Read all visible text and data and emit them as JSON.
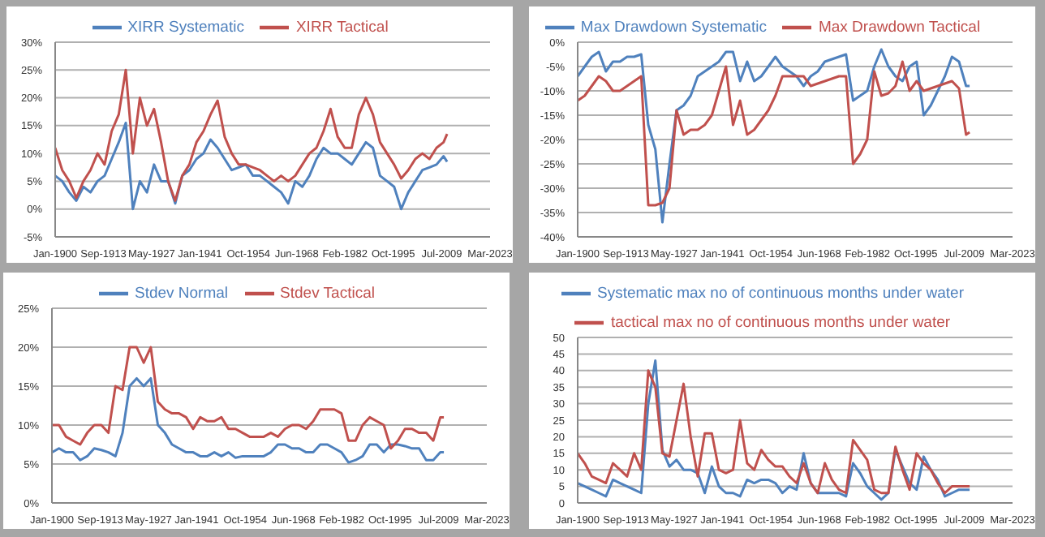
{
  "chart_data": [
    {
      "type": "line",
      "x": [
        "1900",
        "1902",
        "1904",
        "1906",
        "1908",
        "1910",
        "1912",
        "1914",
        "1916",
        "1918",
        "1920",
        "1922",
        "1924",
        "1926",
        "1928",
        "1930",
        "1932",
        "1934",
        "1936",
        "1938",
        "1940",
        "1942",
        "1944",
        "1946",
        "1948",
        "1950",
        "1952",
        "1954",
        "1956",
        "1958",
        "1960",
        "1962",
        "1964",
        "1966",
        "1968",
        "1970",
        "1972",
        "1974",
        "1976",
        "1978",
        "1980",
        "1982",
        "1984",
        "1986",
        "1988",
        "1990",
        "1992",
        "1994",
        "1996",
        "1998",
        "2000",
        "2002",
        "2004",
        "2006",
        "2008",
        "2010",
        "2011"
      ],
      "series": [
        {
          "name": "XIRR Systematic",
          "color": "#4f81bd",
          "values": [
            6,
            5,
            3,
            1.5,
            4,
            3,
            5,
            6,
            9,
            12,
            15.5,
            0,
            5,
            3,
            8,
            5,
            5,
            1,
            6,
            7,
            9,
            10,
            12.5,
            11,
            9,
            7,
            7.5,
            8,
            6,
            6,
            5,
            4,
            3,
            1,
            5,
            4,
            6,
            9,
            11,
            10,
            10,
            9,
            8,
            10,
            12,
            11,
            6,
            5,
            4,
            0,
            3,
            5,
            7,
            7.5,
            8,
            9.5,
            8.5
          ]
        },
        {
          "name": "XIRR Tactical",
          "color": "#c0504d",
          "values": [
            11,
            7,
            5,
            2,
            5,
            7,
            10,
            8,
            14,
            17,
            25,
            10,
            20,
            15,
            18,
            12,
            5,
            1.5,
            6,
            8,
            12,
            14,
            17,
            19.5,
            13,
            10,
            8,
            8,
            7.5,
            7,
            6,
            5,
            6,
            5,
            6,
            8,
            10,
            11,
            14,
            18,
            13,
            11,
            11,
            17,
            20,
            17,
            12,
            10,
            8,
            5.5,
            7,
            9,
            10,
            9,
            11,
            12,
            13.5
          ]
        }
      ],
      "xlim": [
        "1900-01",
        "2023-03"
      ],
      "xticks": [
        {
          "value": "1900-01",
          "label": "Jan-1900"
        },
        {
          "value": "1913-09",
          "label": "Sep-1913"
        },
        {
          "value": "1927-05",
          "label": "May-1927"
        },
        {
          "value": "1941-01",
          "label": "Jan-1941"
        },
        {
          "value": "1954-10",
          "label": "Oct-1954"
        },
        {
          "value": "1968-06",
          "label": "Jun-1968"
        },
        {
          "value": "1982-02",
          "label": "Feb-1982"
        },
        {
          "value": "1995-10",
          "label": "Oct-1995"
        },
        {
          "value": "2009-07",
          "label": "Jul-2009"
        },
        {
          "value": "2023-03",
          "label": "Mar-2023"
        }
      ],
      "ylim": [
        -5,
        30
      ],
      "yticks": [
        {
          "value": -5,
          "label": "-5%"
        },
        {
          "value": 0,
          "label": "0%"
        },
        {
          "value": 5,
          "label": "5%"
        },
        {
          "value": 10,
          "label": "10%"
        },
        {
          "value": 15,
          "label": "15%"
        },
        {
          "value": 20,
          "label": "20%"
        },
        {
          "value": 25,
          "label": "25%"
        },
        {
          "value": 30,
          "label": "30%"
        }
      ],
      "grid": "y",
      "legend": "top",
      "marker": "none",
      "line_style": "solid"
    },
    {
      "type": "line",
      "x": [
        "1900",
        "1902",
        "1904",
        "1906",
        "1908",
        "1910",
        "1912",
        "1914",
        "1916",
        "1918",
        "1920",
        "1922",
        "1924",
        "1926",
        "1928",
        "1930",
        "1932",
        "1934",
        "1936",
        "1938",
        "1940",
        "1942",
        "1944",
        "1946",
        "1948",
        "1950",
        "1952",
        "1954",
        "1956",
        "1958",
        "1960",
        "1962",
        "1964",
        "1966",
        "1968",
        "1970",
        "1972",
        "1974",
        "1976",
        "1978",
        "1980",
        "1982",
        "1984",
        "1986",
        "1988",
        "1990",
        "1992",
        "1994",
        "1996",
        "1998",
        "2000",
        "2002",
        "2004",
        "2006",
        "2008",
        "2010",
        "2011"
      ],
      "series": [
        {
          "name": "Max Drawdown Systematic",
          "color": "#4f81bd",
          "values": [
            -7,
            -5,
            -3,
            -2,
            -6,
            -4,
            -4,
            -3,
            -3,
            -2.5,
            -17,
            -22,
            -37,
            -25,
            -14,
            -13,
            -11,
            -7,
            -6,
            -5,
            -4,
            -2,
            -2,
            -8,
            -4,
            -8,
            -7,
            -5,
            -3,
            -5,
            -6,
            -7,
            -9,
            -7,
            -6,
            -4,
            -3.5,
            -3,
            -2.5,
            -12,
            -11,
            -10,
            -5,
            -1.5,
            -5,
            -7,
            -8,
            -5,
            -4,
            -15,
            -13,
            -10,
            -7,
            -3,
            -4,
            -9,
            -9
          ]
        },
        {
          "name": "Max Drawdown Tactical",
          "color": "#c0504d",
          "values": [
            -12,
            -11,
            -9,
            -7,
            -8,
            -10,
            -10,
            -9,
            -8,
            -7,
            -33.5,
            -33.5,
            -33,
            -30,
            -14,
            -19,
            -18,
            -18,
            -17,
            -15,
            -10,
            -5,
            -17,
            -12,
            -19,
            -18,
            -16,
            -14,
            -11,
            -7,
            -7,
            -7,
            -7,
            -9,
            -8.5,
            -8,
            -7.5,
            -7,
            -7,
            -25,
            -23,
            -20,
            -6,
            -11,
            -10.5,
            -9,
            -4,
            -10,
            -8,
            -10,
            -9.5,
            -9,
            -8.5,
            -8,
            -9.5,
            -19,
            -18.5
          ]
        }
      ],
      "xlim": [
        "1900-01",
        "2023-03"
      ],
      "xticks": [
        {
          "value": "1900-01",
          "label": "Jan-1900"
        },
        {
          "value": "1913-09",
          "label": "Sep-1913"
        },
        {
          "value": "1927-05",
          "label": "May-1927"
        },
        {
          "value": "1941-01",
          "label": "Jan-1941"
        },
        {
          "value": "1954-10",
          "label": "Oct-1954"
        },
        {
          "value": "1968-06",
          "label": "Jun-1968"
        },
        {
          "value": "1982-02",
          "label": "Feb-1982"
        },
        {
          "value": "1995-10",
          "label": "Oct-1995"
        },
        {
          "value": "2009-07",
          "label": "Jul-2009"
        },
        {
          "value": "2023-03",
          "label": "Mar-2023"
        }
      ],
      "ylim": [
        -40,
        0
      ],
      "yticks": [
        {
          "value": -40,
          "label": "-40%"
        },
        {
          "value": -35,
          "label": "-35%"
        },
        {
          "value": -30,
          "label": "-30%"
        },
        {
          "value": -25,
          "label": "-25%"
        },
        {
          "value": -20,
          "label": "-20%"
        },
        {
          "value": -15,
          "label": "-15%"
        },
        {
          "value": -10,
          "label": "-10%"
        },
        {
          "value": -5,
          "label": "-5%"
        },
        {
          "value": 0,
          "label": "0%"
        }
      ],
      "grid": "y",
      "legend": "top",
      "marker": "none",
      "line_style": "solid"
    },
    {
      "type": "line",
      "x": [
        "1900",
        "1902",
        "1904",
        "1906",
        "1908",
        "1910",
        "1912",
        "1914",
        "1916",
        "1918",
        "1920",
        "1922",
        "1924",
        "1926",
        "1928",
        "1930",
        "1932",
        "1934",
        "1936",
        "1938",
        "1940",
        "1942",
        "1944",
        "1946",
        "1948",
        "1950",
        "1952",
        "1954",
        "1956",
        "1958",
        "1960",
        "1962",
        "1964",
        "1966",
        "1968",
        "1970",
        "1972",
        "1974",
        "1976",
        "1978",
        "1980",
        "1982",
        "1984",
        "1986",
        "1988",
        "1990",
        "1992",
        "1994",
        "1996",
        "1998",
        "2000",
        "2002",
        "2004",
        "2006",
        "2008",
        "2010",
        "2011"
      ],
      "series": [
        {
          "name": "Stdev Normal",
          "color": "#4f81bd",
          "values": [
            6.5,
            7,
            6.5,
            6.5,
            5.5,
            6,
            7,
            6.8,
            6.5,
            6,
            9,
            15,
            16,
            15,
            16,
            10,
            9,
            7.5,
            7,
            6.5,
            6.5,
            6,
            6,
            6.5,
            6,
            6.5,
            5.8,
            6,
            6,
            6,
            6,
            6.5,
            7.5,
            7.5,
            7,
            7,
            6.5,
            6.5,
            7.5,
            7.5,
            7,
            6.5,
            5.2,
            5.5,
            6,
            7.5,
            7.5,
            6.5,
            7.5,
            7.5,
            7.3,
            7,
            7,
            5.5,
            5.5,
            6.5,
            6.5
          ]
        },
        {
          "name": "Stdev Tactical",
          "color": "#c0504d",
          "values": [
            10,
            10,
            8.5,
            8,
            7.5,
            9,
            10,
            10,
            9,
            15,
            14.5,
            20,
            20,
            18,
            20,
            13,
            12,
            11.5,
            11.5,
            11,
            9.5,
            11,
            10.5,
            10.5,
            11,
            9.5,
            9.5,
            9,
            8.5,
            8.5,
            8.5,
            9,
            8.5,
            9.5,
            10,
            10,
            9.5,
            10.5,
            12,
            12,
            12,
            11.5,
            8,
            8,
            10,
            11,
            10.5,
            10,
            7,
            8,
            9.5,
            9.5,
            9,
            9,
            8,
            11,
            11
          ]
        }
      ],
      "xlim": [
        "1900-01",
        "2023-03"
      ],
      "xticks": [
        {
          "value": "1900-01",
          "label": "Jan-1900"
        },
        {
          "value": "1913-09",
          "label": "Sep-1913"
        },
        {
          "value": "1927-05",
          "label": "May-1927"
        },
        {
          "value": "1941-01",
          "label": "Jan-1941"
        },
        {
          "value": "1954-10",
          "label": "Oct-1954"
        },
        {
          "value": "1968-06",
          "label": "Jun-1968"
        },
        {
          "value": "1982-02",
          "label": "Feb-1982"
        },
        {
          "value": "1995-10",
          "label": "Oct-1995"
        },
        {
          "value": "2009-07",
          "label": "Jul-2009"
        },
        {
          "value": "2023-03",
          "label": "Mar-2023"
        }
      ],
      "ylim": [
        0,
        25
      ],
      "yticks": [
        {
          "value": 0,
          "label": "0%"
        },
        {
          "value": 5,
          "label": "5%"
        },
        {
          "value": 10,
          "label": "10%"
        },
        {
          "value": 15,
          "label": "15%"
        },
        {
          "value": 20,
          "label": "20%"
        },
        {
          "value": 25,
          "label": "25%"
        }
      ],
      "grid": "y",
      "legend": "top",
      "marker": "none",
      "line_style": "solid"
    },
    {
      "type": "line",
      "x": [
        "1900",
        "1902",
        "1904",
        "1906",
        "1908",
        "1910",
        "1912",
        "1914",
        "1916",
        "1918",
        "1920",
        "1922",
        "1924",
        "1926",
        "1928",
        "1930",
        "1932",
        "1934",
        "1936",
        "1938",
        "1940",
        "1942",
        "1944",
        "1946",
        "1948",
        "1950",
        "1952",
        "1954",
        "1956",
        "1958",
        "1960",
        "1962",
        "1964",
        "1966",
        "1968",
        "1970",
        "1972",
        "1974",
        "1976",
        "1978",
        "1980",
        "1982",
        "1984",
        "1986",
        "1988",
        "1990",
        "1992",
        "1994",
        "1996",
        "1998",
        "2000",
        "2002",
        "2004",
        "2006",
        "2008",
        "2010",
        "2011"
      ],
      "series": [
        {
          "name": "Systematic max no of continuous months under water",
          "color": "#4f81bd",
          "values": [
            6,
            5,
            4,
            3,
            2,
            7,
            6,
            5,
            4,
            3,
            30,
            43,
            16,
            11,
            13,
            10,
            10,
            9,
            3,
            11,
            5,
            3,
            3,
            2,
            7,
            6,
            7,
            7,
            6,
            3,
            5,
            4,
            15,
            6,
            3,
            3,
            3,
            3,
            2,
            12,
            9,
            5,
            3,
            1,
            3,
            16,
            11,
            6,
            4,
            14,
            10,
            7,
            2,
            3,
            4,
            4,
            4
          ]
        },
        {
          "name": "tactical max no of continuous months under water",
          "color": "#c0504d",
          "values": [
            15,
            12,
            8,
            7,
            6,
            12,
            10,
            8,
            15,
            10,
            40,
            35,
            15,
            14,
            25,
            36,
            20,
            8,
            21,
            21,
            10,
            9,
            10,
            25,
            12,
            10,
            16,
            13,
            11,
            11,
            8,
            6,
            12,
            6,
            3,
            12,
            7,
            4,
            3,
            19,
            16,
            13,
            4,
            3,
            3,
            17,
            10,
            4,
            15,
            12,
            10,
            6,
            3,
            5,
            5,
            5,
            5
          ]
        }
      ],
      "xlim": [
        "1900-01",
        "2023-03"
      ],
      "xticks": [
        {
          "value": "1900-01",
          "label": "Jan-1900"
        },
        {
          "value": "1913-09",
          "label": "Sep-1913"
        },
        {
          "value": "1927-05",
          "label": "May-1927"
        },
        {
          "value": "1941-01",
          "label": "Jan-1941"
        },
        {
          "value": "1954-10",
          "label": "Oct-1954"
        },
        {
          "value": "1968-06",
          "label": "Jun-1968"
        },
        {
          "value": "1982-02",
          "label": "Feb-1982"
        },
        {
          "value": "1995-10",
          "label": "Oct-1995"
        },
        {
          "value": "2009-07",
          "label": "Jul-2009"
        },
        {
          "value": "2023-03",
          "label": "Mar-2023"
        }
      ],
      "ylim": [
        0,
        50
      ],
      "yticks": [
        0,
        5,
        10,
        15,
        20,
        25,
        30,
        35,
        40,
        45,
        50
      ],
      "grid": "y",
      "legend": "top",
      "marker": "none",
      "line_style": "solid"
    }
  ]
}
